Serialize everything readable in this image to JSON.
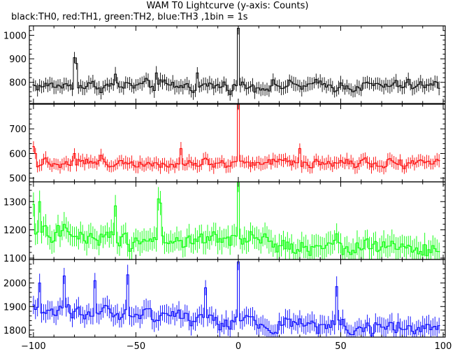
{
  "chart_data": {
    "type": "line",
    "title": "WAM T0 Lightcurve (y-axis: Counts)",
    "subtitle": "black:TH0, red:TH1, green:TH2, blue:TH3 ,1bin = 1s",
    "xlabel": "",
    "ylabel": "",
    "xlim": [
      -102,
      101
    ],
    "x_ticks": [
      -100,
      -50,
      0,
      50,
      100
    ],
    "x_tick_labels": [
      "−100",
      "−50",
      "0",
      "50",
      "100"
    ],
    "x_range": [
      -100,
      98
    ],
    "bin": 1,
    "error_bars": true,
    "grid": false,
    "panels": [
      {
        "name": "TH0",
        "color": "#000000",
        "ylim": [
          710,
          1040
        ],
        "y_ticks": [
          800,
          900,
          1000
        ],
        "base": 785,
        "noise": 20,
        "err": 27,
        "trend": 0,
        "peak": 1030,
        "features": [
          [
            -80,
            905
          ],
          [
            -79,
            880
          ],
          [
            -20,
            840
          ],
          [
            -40,
            840
          ],
          [
            -60,
            835
          ]
        ]
      },
      {
        "name": "TH1",
        "color": "#ff0000",
        "ylim": [
          485,
          800
        ],
        "y_ticks": [
          500,
          600,
          700
        ],
        "base": 565,
        "noise": 18,
        "err": 24,
        "trend": 0,
        "peak": 800,
        "features": [
          [
            -100,
            628
          ],
          [
            -99,
            600
          ],
          [
            -28,
            620
          ],
          [
            30,
            620
          ],
          [
            -80,
            600
          ]
        ]
      },
      {
        "name": "TH2",
        "color": "#00ff00",
        "ylim": [
          1095,
          1370
        ],
        "y_ticks": [
          1100,
          1200,
          1300
        ],
        "base": 1185,
        "noise": 28,
        "err": 38,
        "trend": -55,
        "peak": 1370,
        "features": [
          [
            -39,
            1310
          ],
          [
            -38,
            1295
          ],
          [
            -100,
            1290
          ],
          [
            -97,
            1300
          ],
          [
            -60,
            1285
          ]
        ]
      },
      {
        "name": "TH3",
        "color": "#0000ff",
        "ylim": [
          1770,
          2100
        ],
        "y_ticks": [
          1800,
          1900,
          2000
        ],
        "base": 1890,
        "noise": 28,
        "err": 38,
        "trend": -95,
        "peak": 2090,
        "features": [
          [
            -54,
            2035
          ],
          [
            -85,
            2030
          ],
          [
            -70,
            2010
          ],
          [
            -97,
            2000
          ],
          [
            48,
            1985
          ],
          [
            -16,
            1980
          ]
        ]
      }
    ]
  }
}
